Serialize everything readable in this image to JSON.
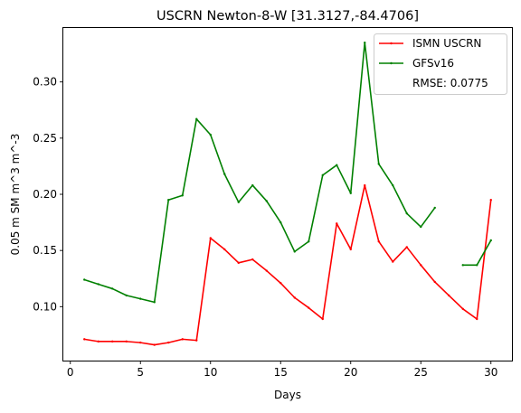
{
  "chart_data": {
    "type": "line",
    "title": "USCRN Newton-8-W [31.3127,-84.4706]",
    "xlabel": "Days",
    "ylabel": "0.05 m SM m^3 m^-3",
    "xlim": [
      -0.5,
      31.5
    ],
    "ylim": [
      0.052,
      0.348
    ],
    "xticks": [
      0,
      5,
      10,
      15,
      20,
      25,
      30
    ],
    "yticks": [
      0.1,
      0.15,
      0.2,
      0.25,
      0.3
    ],
    "ytick_labels": [
      "0.10",
      "0.15",
      "0.20",
      "0.25",
      "0.30"
    ],
    "grid": false,
    "legend_position": "top-right",
    "x": [
      1,
      2,
      3,
      4,
      5,
      6,
      7,
      8,
      9,
      10,
      11,
      12,
      13,
      14,
      15,
      16,
      17,
      18,
      19,
      20,
      21,
      22,
      23,
      24,
      25,
      26,
      27,
      28,
      29,
      30
    ],
    "series": [
      {
        "name": "ISMN USCRN",
        "color": "#ff0000",
        "values": [
          0.071,
          0.069,
          0.069,
          0.069,
          0.068,
          0.066,
          0.068,
          0.071,
          0.07,
          0.161,
          0.151,
          0.139,
          0.142,
          0.132,
          0.121,
          0.108,
          0.099,
          0.089,
          0.174,
          0.151,
          0.208,
          0.158,
          0.14,
          0.153,
          0.137,
          0.122,
          0.11,
          0.098,
          0.089,
          0.195
        ]
      },
      {
        "name": "GFSv16",
        "color": "#008000",
        "values": [
          0.124,
          0.12,
          0.116,
          0.11,
          0.107,
          0.104,
          0.195,
          0.199,
          0.267,
          0.253,
          0.218,
          0.193,
          0.208,
          0.194,
          0.175,
          0.149,
          0.158,
          0.217,
          0.226,
          0.201,
          0.335,
          0.227,
          0.208,
          0.183,
          0.171,
          0.188,
          null,
          0.137,
          0.137,
          0.159
        ]
      }
    ],
    "legend_extra": "RMSE: 0.0775"
  }
}
